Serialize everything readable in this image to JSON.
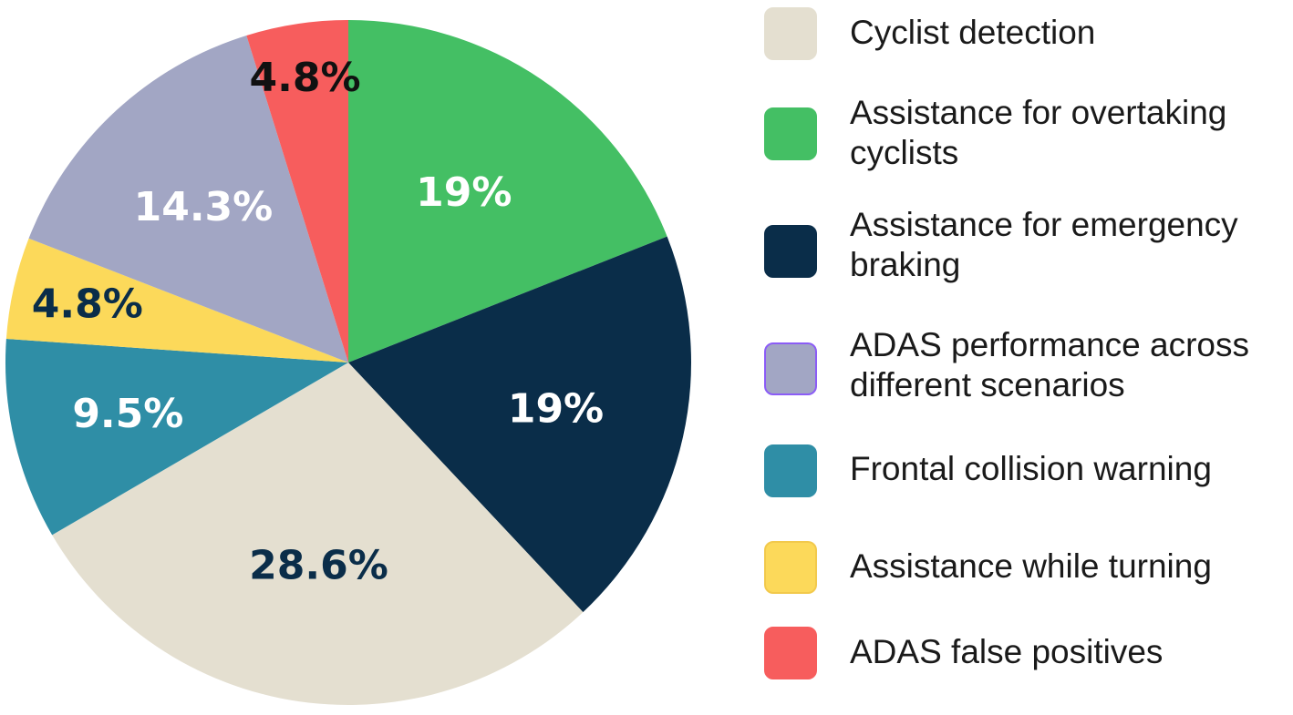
{
  "chart_data": {
    "type": "pie",
    "title": "",
    "start_angle_deg": 0,
    "direction": "clockwise",
    "slices": [
      {
        "label": "Assistance for overtaking cyclists",
        "value": 19.0,
        "display": "19%",
        "color": "#44bf64",
        "label_color": "#ffffff"
      },
      {
        "label": "Assistance for emergency braking",
        "value": 19.0,
        "display": "19%",
        "color": "#0a2d49",
        "label_color": "#ffffff"
      },
      {
        "label": "Cyclist detection",
        "value": 28.6,
        "display": "28.6%",
        "color": "#e4dfd0",
        "label_color": "#0a2d49"
      },
      {
        "label": "Frontal collision warning",
        "value": 9.5,
        "display": "9.5%",
        "color": "#2f8ea6",
        "label_color": "#ffffff"
      },
      {
        "label": "Assistance while turning",
        "value": 4.8,
        "display": "4.8%",
        "color": "#fcd95a",
        "label_color": "#0a2d49"
      },
      {
        "label": "ADAS performance across different scenarios",
        "value": 14.3,
        "display": "14.3%",
        "color": "#a2a6c4",
        "label_color": "#ffffff"
      },
      {
        "label": "ADAS false positives",
        "value": 4.8,
        "display": "4.8%",
        "color": "#f75d5d",
        "label_color": "#111111"
      }
    ],
    "legend": [
      {
        "label": "Cyclist detection",
        "color": "#e4dfd0",
        "border": "#e4dfd0"
      },
      {
        "label": "Assistance for overtaking cyclists",
        "color": "#44bf64",
        "border": "#44bf64"
      },
      {
        "label": "Assistance for emergency braking",
        "color": "#0a2d49",
        "border": "#0a2d49"
      },
      {
        "label": "ADAS performance across different scenarios",
        "color": "#a2a6c4",
        "border": "#8b5cf6"
      },
      {
        "label": "Frontal collision warning",
        "color": "#2f8ea6",
        "border": "#2f8ea6"
      },
      {
        "label": "Assistance while turning",
        "color": "#fcd95a",
        "border": "#f2c94c"
      },
      {
        "label": "ADAS false positives",
        "color": "#f75d5d",
        "border": "#f75d5d"
      }
    ],
    "legend_position": "right"
  }
}
